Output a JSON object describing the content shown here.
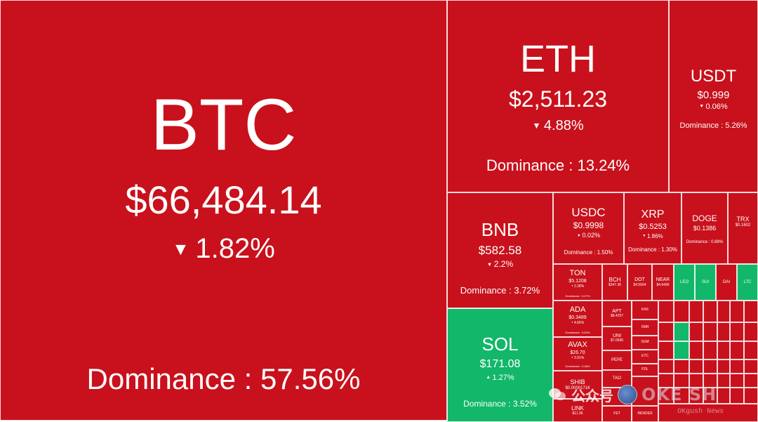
{
  "heatmap": {
    "colors": {
      "down": "#c8111c",
      "up": "#12b76a",
      "border": "#ffffff"
    },
    "tiles": [
      {
        "id": "btc",
        "symbol": "BTC",
        "price": "$66,484.14",
        "direction": "down",
        "change": "1.82%",
        "dominance": "Dominance : 57.56%"
      },
      {
        "id": "eth",
        "symbol": "ETH",
        "price": "$2,511.23",
        "direction": "down",
        "change": "4.88%",
        "dominance": "Dominance : 13.24%"
      },
      {
        "id": "usdt",
        "symbol": "USDT",
        "price": "$0.999",
        "direction": "down",
        "change": "0.06%",
        "dominance": "Dominance : 5.26%"
      },
      {
        "id": "bnb",
        "symbol": "BNB",
        "price": "$582.58",
        "direction": "down",
        "change": "2.2%",
        "dominance": "Dominance : 3.72%"
      },
      {
        "id": "sol",
        "symbol": "SOL",
        "price": "$171.08",
        "direction": "up",
        "change": "1.27%",
        "dominance": "Dominance : 3.52%"
      },
      {
        "id": "usdc",
        "symbol": "USDC",
        "price": "$0.9998",
        "direction": "down",
        "change": "0.02%",
        "dominance": "Dominance : 1.50%"
      },
      {
        "id": "xrp",
        "symbol": "XRP",
        "price": "$0.5253",
        "direction": "down",
        "change": "1.86%",
        "dominance": "Dominance : 1.30%"
      },
      {
        "id": "doge",
        "symbol": "DOGE",
        "price": "$0.1386",
        "direction": "down",
        "change": "",
        "dominance": "Dominance : 0.88%"
      },
      {
        "id": "trx",
        "symbol": "TRX",
        "price": "$0.1602",
        "direction": "down",
        "change": "",
        "dominance": ""
      },
      {
        "id": "ton",
        "symbol": "TON",
        "price": "$5.1208",
        "direction": "down",
        "change": "2.28%",
        "dominance": "Dominance : 0.07%"
      },
      {
        "id": "ada",
        "symbol": "ADA",
        "price": "$0.3489",
        "direction": "down",
        "change": "4.66%",
        "dominance": "Dominance : 0.53%"
      },
      {
        "id": "avax",
        "symbol": "AVAX",
        "price": "$26.70",
        "direction": "down",
        "change": "3.91%",
        "dominance": "Dominance : 0.46%"
      },
      {
        "id": "shib",
        "symbol": "SHIB",
        "price": "$0.00001716",
        "direction": "down",
        "change": "",
        "dominance": ""
      },
      {
        "id": "link",
        "symbol": "LINK",
        "price": "$11.36",
        "direction": "down",
        "change": "",
        "dominance": ""
      },
      {
        "id": "bch",
        "symbol": "BCH",
        "price": "$347.36",
        "direction": "down",
        "change": "",
        "dominance": ""
      },
      {
        "id": "dot",
        "symbol": "DOT",
        "price": "$4.5564",
        "direction": "down",
        "change": "",
        "dominance": ""
      },
      {
        "id": "near",
        "symbol": "NEAR",
        "price": "$4.6496",
        "direction": "down",
        "change": "",
        "dominance": ""
      },
      {
        "id": "leo",
        "symbol": "LEO",
        "price": "",
        "direction": "up",
        "change": "",
        "dominance": ""
      },
      {
        "id": "sui",
        "symbol": "SUI",
        "price": "",
        "direction": "up",
        "change": "",
        "dominance": ""
      },
      {
        "id": "dai",
        "symbol": "DAI",
        "price": "",
        "direction": "down",
        "change": "",
        "dominance": ""
      },
      {
        "id": "ltc",
        "symbol": "LTC",
        "price": "",
        "direction": "up",
        "change": "",
        "dominance": ""
      },
      {
        "id": "apt",
        "symbol": "APT",
        "price": "$8.4257",
        "direction": "down",
        "change": "",
        "dominance": ""
      },
      {
        "id": "uni",
        "symbol": "UNI",
        "price": "$7.0596",
        "direction": "down",
        "change": "",
        "dominance": ""
      },
      {
        "id": "pepe",
        "symbol": "PEPE",
        "price": "",
        "direction": "down",
        "change": "",
        "dominance": ""
      },
      {
        "id": "tao",
        "symbol": "TAO",
        "price": "",
        "direction": "down",
        "change": "",
        "dominance": ""
      },
      {
        "id": "fet",
        "symbol": "FET",
        "price": "",
        "direction": "down",
        "change": "",
        "dominance": ""
      },
      {
        "id": "kas",
        "symbol": "KAS",
        "price": "",
        "direction": "down",
        "change": "",
        "dominance": ""
      },
      {
        "id": "xmr",
        "symbol": "XMR",
        "price": "",
        "direction": "down",
        "change": "",
        "dominance": ""
      },
      {
        "id": "sum",
        "symbol": "SUM",
        "price": "",
        "direction": "down",
        "change": "",
        "dominance": ""
      },
      {
        "id": "etc",
        "symbol": "ETC",
        "price": "",
        "direction": "down",
        "change": "",
        "dominance": ""
      },
      {
        "id": "fdl",
        "symbol": "FDL",
        "price": "",
        "direction": "down",
        "change": "",
        "dominance": ""
      },
      {
        "id": "render",
        "symbol": "RENDER",
        "price": "",
        "direction": "down",
        "change": "",
        "dominance": ""
      }
    ]
  },
  "watermark": {
    "text": "公众号",
    "name": "OKE SH",
    "sub": "OKgush News"
  }
}
